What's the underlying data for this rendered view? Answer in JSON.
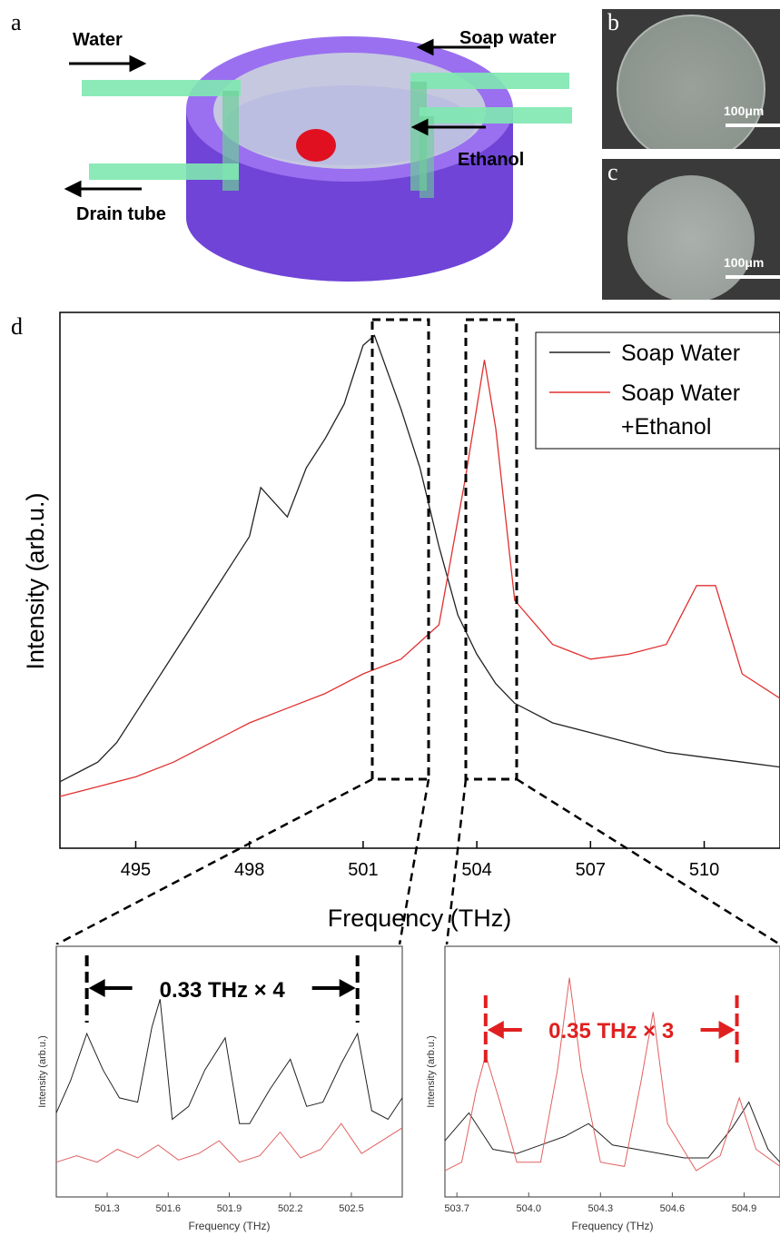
{
  "panel_a": {
    "letter": "a",
    "labels": {
      "water": "Water",
      "soap_water": "Soap water",
      "ethanol": "Ethanol",
      "drain_tube": "Drain tube"
    },
    "colors": {
      "chamber": "#7a4fe0",
      "tubes": "#7ee8b0",
      "droplet": "#e01020"
    }
  },
  "panel_b": {
    "letter": "b",
    "scale": "100μm"
  },
  "panel_c": {
    "letter": "c",
    "scale": "100μm"
  },
  "panel_d": {
    "letter": "d"
  },
  "chart_data": [
    {
      "type": "line",
      "xlabel": "Frequency (THz)",
      "ylabel": "Intensity (arb.u.)",
      "xlim": [
        493,
        512
      ],
      "ylim": [
        0,
        1
      ],
      "xticks": [
        "495",
        "498",
        "501",
        "504",
        "507",
        "510"
      ],
      "legend": {
        "position": "top-right",
        "entries": [
          "Soap Water",
          "Soap Water\n+Ethanol"
        ]
      },
      "series": [
        {
          "name": "Soap Water",
          "color": "#222222",
          "x": [
            493.0,
            493.5,
            494.0,
            494.5,
            495.0,
            495.5,
            496.0,
            496.5,
            497.0,
            497.5,
            498.0,
            498.3,
            499.0,
            499.5,
            500.0,
            500.5,
            501.0,
            501.3,
            502.0,
            502.5,
            503.0,
            503.5,
            504.0,
            504.5,
            505.0,
            506.0,
            507.0,
            508.0,
            509.0,
            510.0,
            511.0,
            512.0
          ],
          "y": [
            0.08,
            0.1,
            0.12,
            0.16,
            0.22,
            0.28,
            0.34,
            0.4,
            0.46,
            0.52,
            0.58,
            0.68,
            0.62,
            0.72,
            0.78,
            0.85,
            0.97,
            0.99,
            0.84,
            0.72,
            0.56,
            0.42,
            0.34,
            0.28,
            0.24,
            0.2,
            0.18,
            0.16,
            0.14,
            0.13,
            0.12,
            0.11
          ]
        },
        {
          "name": "Soap Water\n+Ethanol",
          "color": "#e03030",
          "x": [
            493.0,
            494.0,
            495.0,
            496.0,
            497.0,
            498.0,
            499.0,
            500.0,
            501.0,
            502.0,
            503.0,
            503.7,
            504.2,
            504.5,
            505.0,
            506.0,
            507.0,
            508.0,
            509.0,
            509.8,
            510.3,
            511.0,
            512.0
          ],
          "y": [
            0.05,
            0.07,
            0.09,
            0.12,
            0.16,
            0.2,
            0.23,
            0.26,
            0.3,
            0.33,
            0.4,
            0.7,
            0.94,
            0.8,
            0.45,
            0.36,
            0.33,
            0.34,
            0.36,
            0.48,
            0.48,
            0.3,
            0.25
          ]
        }
      ]
    },
    {
      "type": "line",
      "xlabel": "Frequency (THz)",
      "ylabel": "Intensity (arb.u.)",
      "xlim": [
        501.05,
        502.75
      ],
      "xticks": [
        "501.3",
        "501.6",
        "501.9",
        "502.2",
        "502.5"
      ],
      "annotation": "0.33 THz × 4",
      "series": [
        {
          "color": "#222222",
          "x": [
            501.05,
            501.12,
            501.2,
            501.28,
            501.36,
            501.45,
            501.52,
            501.56,
            501.62,
            501.7,
            501.78,
            501.88,
            501.95,
            502.0,
            502.1,
            502.2,
            502.28,
            502.36,
            502.45,
            502.53,
            502.6,
            502.68,
            502.75
          ],
          "y": [
            0.35,
            0.5,
            0.72,
            0.55,
            0.42,
            0.4,
            0.75,
            0.88,
            0.32,
            0.38,
            0.55,
            0.7,
            0.3,
            0.3,
            0.46,
            0.6,
            0.38,
            0.4,
            0.58,
            0.72,
            0.36,
            0.32,
            0.42
          ]
        },
        {
          "color": "#e06060",
          "x": [
            501.05,
            501.15,
            501.25,
            501.35,
            501.45,
            501.55,
            501.65,
            501.75,
            501.85,
            501.95,
            502.05,
            502.15,
            502.25,
            502.35,
            502.45,
            502.55,
            502.65,
            502.75
          ],
          "y": [
            0.12,
            0.15,
            0.12,
            0.18,
            0.14,
            0.2,
            0.13,
            0.16,
            0.22,
            0.12,
            0.15,
            0.26,
            0.14,
            0.18,
            0.3,
            0.16,
            0.22,
            0.28
          ]
        }
      ]
    },
    {
      "type": "line",
      "xlabel": "Frequency (THz)",
      "ylabel": "Intensity (arb.u.)",
      "xlim": [
        503.65,
        505.05
      ],
      "xticks": [
        "503.7",
        "504.0",
        "504.3",
        "504.6",
        "504.9"
      ],
      "annotation": "0.35 THz × 3",
      "series": [
        {
          "color": "#222222",
          "x": [
            503.65,
            503.75,
            503.85,
            503.95,
            504.05,
            504.15,
            504.25,
            504.35,
            504.45,
            504.55,
            504.65,
            504.75,
            504.85,
            504.92,
            505.0,
            505.05
          ],
          "y": [
            0.22,
            0.35,
            0.18,
            0.16,
            0.2,
            0.24,
            0.3,
            0.2,
            0.18,
            0.16,
            0.14,
            0.14,
            0.28,
            0.4,
            0.18,
            0.12
          ]
        },
        {
          "color": "#e06060",
          "x": [
            503.65,
            503.72,
            503.78,
            503.82,
            503.88,
            503.95,
            504.05,
            504.12,
            504.17,
            504.22,
            504.3,
            504.4,
            504.47,
            504.52,
            504.58,
            504.7,
            504.8,
            504.88,
            504.95,
            505.05
          ],
          "y": [
            0.08,
            0.12,
            0.45,
            0.62,
            0.4,
            0.12,
            0.12,
            0.55,
            0.98,
            0.55,
            0.12,
            0.1,
            0.5,
            0.82,
            0.3,
            0.08,
            0.15,
            0.42,
            0.18,
            0.1
          ]
        }
      ]
    }
  ]
}
